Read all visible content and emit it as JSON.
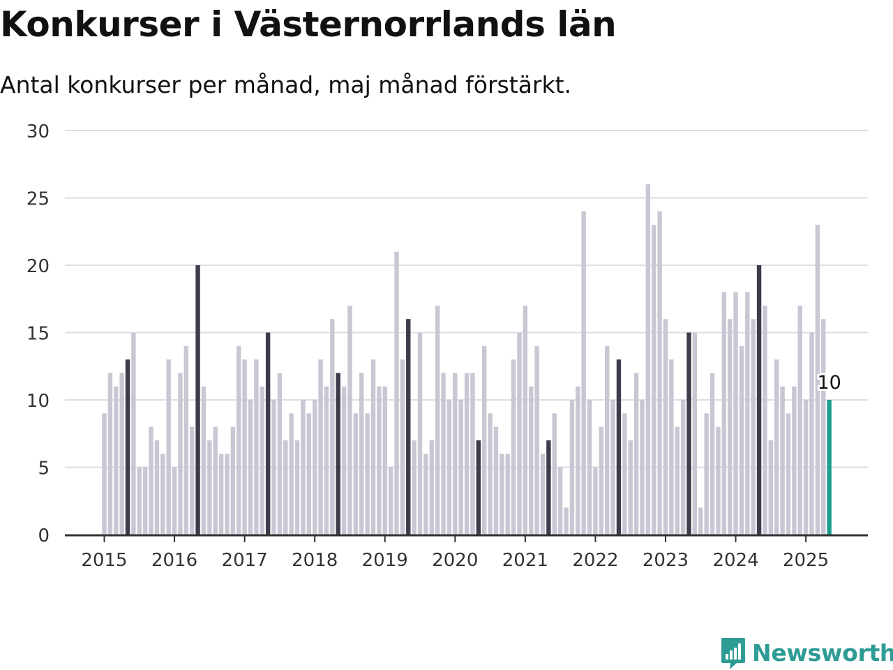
{
  "header": {
    "title": "Konkurser i Västernorrlands län",
    "subtitle": "Antal konkurser per månad, maj månad förstärkt."
  },
  "brand": {
    "name": "Newsworthy"
  },
  "colors": {
    "bar": "#c8c7d3",
    "highlight": "#3d3c4b",
    "latest": "#1b9e8f",
    "grid": "#dedde3",
    "axis": "#333333",
    "brand": "#2e9c94"
  },
  "chart_data": {
    "type": "bar",
    "title": "Konkurser i Västernorrlands län",
    "subtitle": "Antal konkurser per månad, maj månad förstärkt.",
    "ylim": [
      0,
      30
    ],
    "yticks": [
      0,
      5,
      10,
      15,
      20,
      25,
      30
    ],
    "xticks": [
      "2015",
      "2016",
      "2017",
      "2018",
      "2019",
      "2020",
      "2021",
      "2022",
      "2023",
      "2024",
      "2025"
    ],
    "start": "2015-01",
    "end": "2025-05",
    "highlight_month": "maj",
    "grid": true,
    "latest_label": "10",
    "values": [
      9,
      12,
      11,
      12,
      13,
      15,
      5,
      5,
      8,
      7,
      6,
      13,
      5,
      12,
      14,
      8,
      20,
      11,
      7,
      8,
      6,
      6,
      8,
      14,
      13,
      10,
      13,
      11,
      15,
      10,
      12,
      7,
      9,
      7,
      10,
      9,
      10,
      13,
      11,
      16,
      12,
      11,
      17,
      9,
      12,
      9,
      13,
      11,
      11,
      5,
      21,
      13,
      16,
      7,
      15,
      6,
      7,
      17,
      12,
      10,
      12,
      10,
      12,
      12,
      7,
      14,
      9,
      8,
      6,
      6,
      13,
      15,
      17,
      11,
      14,
      6,
      7,
      9,
      5,
      2,
      10,
      11,
      24,
      10,
      5,
      8,
      14,
      10,
      13,
      9,
      7,
      12,
      10,
      26,
      23,
      24,
      16,
      13,
      8,
      10,
      15,
      15,
      2,
      9,
      12,
      8,
      18,
      16,
      18,
      14,
      18,
      16,
      20,
      17,
      7,
      13,
      11,
      9,
      11,
      17,
      10,
      15,
      23,
      16,
      10
    ]
  }
}
